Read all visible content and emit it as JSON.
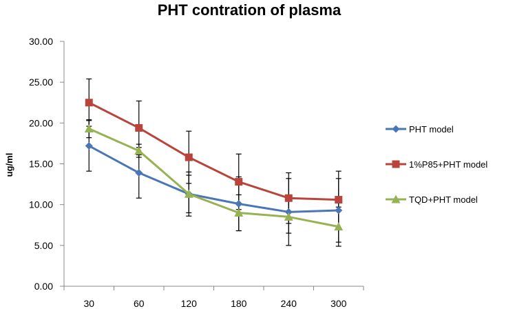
{
  "chart_data": {
    "type": "line",
    "title": "PHT contration of plasma",
    "xlabel": "",
    "ylabel": "ug/ml",
    "categories": [
      "30",
      "60",
      "120",
      "180",
      "240",
      "300"
    ],
    "y_ticks": [
      "0.00",
      "5.00",
      "10.00",
      "15.00",
      "20.00",
      "25.00",
      "30.00"
    ],
    "ylim": [
      0,
      30
    ],
    "grid": false,
    "legend_position": "right",
    "series": [
      {
        "name": "PHT model",
        "color": "#4a76b8",
        "marker": "diamond",
        "values": [
          17.2,
          13.9,
          11.3,
          10.1,
          9.1,
          9.3
        ],
        "errors": [
          3.1,
          3.1,
          2.3,
          3.3,
          4.1,
          3.9
        ]
      },
      {
        "name": "1%P85+PHT model",
        "color": "#b8443c",
        "marker": "square",
        "values": [
          22.5,
          19.4,
          15.8,
          12.8,
          10.8,
          10.6
        ],
        "errors": [
          2.9,
          3.3,
          3.2,
          3.4,
          3.1,
          3.5
        ]
      },
      {
        "name": "TQD+PHT model",
        "color": "#97b253",
        "marker": "triangle",
        "values": [
          19.3,
          16.6,
          11.3,
          9.0,
          8.5,
          7.3
        ],
        "errors": [
          1.1,
          0.8,
          2.7,
          2.2,
          2.0,
          2.4
        ]
      }
    ]
  }
}
